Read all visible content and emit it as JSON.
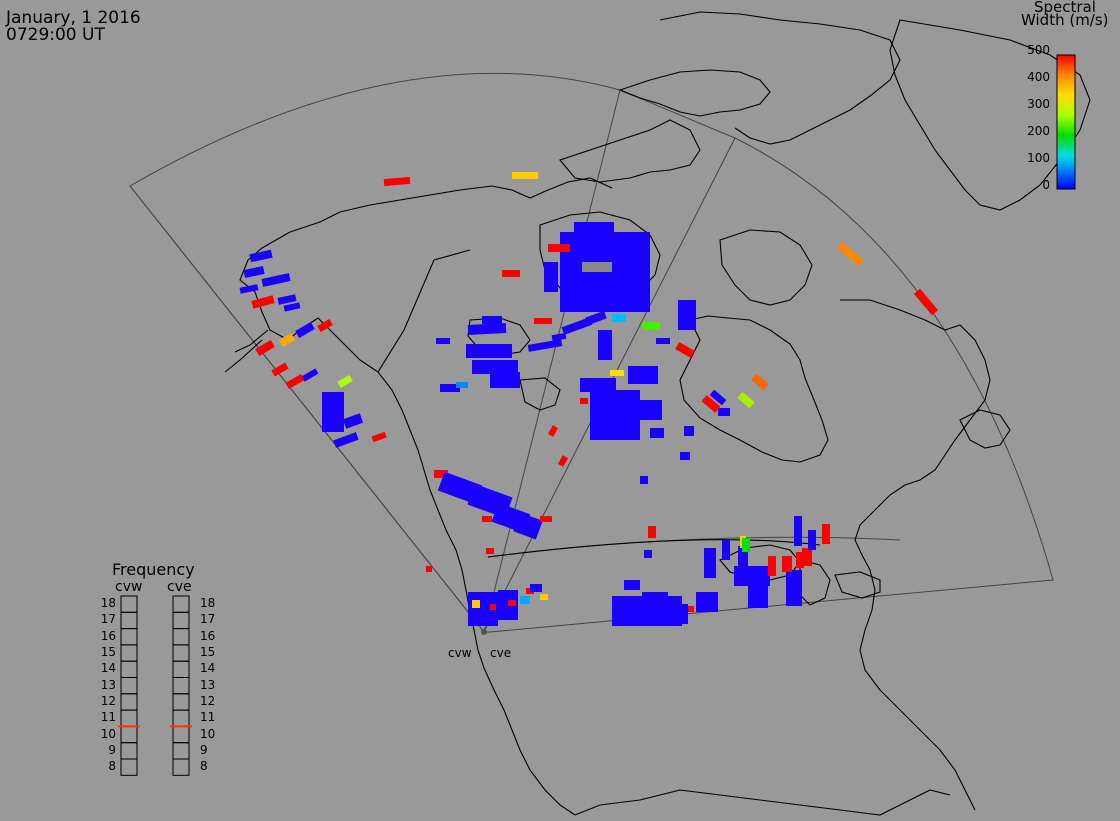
{
  "header": {
    "date": "January, 1 2016",
    "time": "0729:00 UT"
  },
  "colorbar": {
    "title_line1": "Spectral",
    "title_line2": "Width (m/s)",
    "ticks": [
      "500",
      "400",
      "300",
      "200",
      "100",
      "0"
    ],
    "range": [
      0,
      500
    ],
    "colors": [
      "#0000ff",
      "#0088ff",
      "#00dddd",
      "#00dd00",
      "#aaff00",
      "#ffdd00",
      "#ff8800",
      "#ff0000"
    ]
  },
  "frequency_panel": {
    "title": "Frequency",
    "radars": [
      "cvw",
      "cve"
    ],
    "levels": [
      "18",
      "17",
      "16",
      "15",
      "14",
      "13",
      "12",
      "11",
      "10",
      "9",
      "8"
    ],
    "range": [
      8,
      18
    ],
    "cvw_value": 10.5,
    "cve_value": 10.5,
    "marker_color": "#ff3300"
  },
  "radar_labels": {
    "cvw": "cvw",
    "cve": "cve"
  },
  "colors": {
    "background": "#999999",
    "coastline": "#000000",
    "fov": "#444444",
    "low_width": "#1a00ff",
    "high_width": "#ff0000"
  }
}
